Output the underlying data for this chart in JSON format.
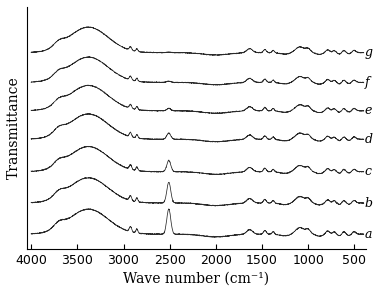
{
  "x_min": 400,
  "x_max": 4000,
  "xlabel": "Wave number (cm⁻¹)",
  "ylabel": "Transmittance",
  "labels": [
    "g",
    "f",
    "e",
    "d",
    "c",
    "b",
    "a"
  ],
  "offsets": [
    1.28,
    1.07,
    0.87,
    0.67,
    0.44,
    0.22,
    0.0
  ],
  "line_color": "#2a2a2a",
  "background_color": "#ffffff",
  "tick_label_fontsize": 9,
  "axis_label_fontsize": 10,
  "label_fontsize": 9
}
